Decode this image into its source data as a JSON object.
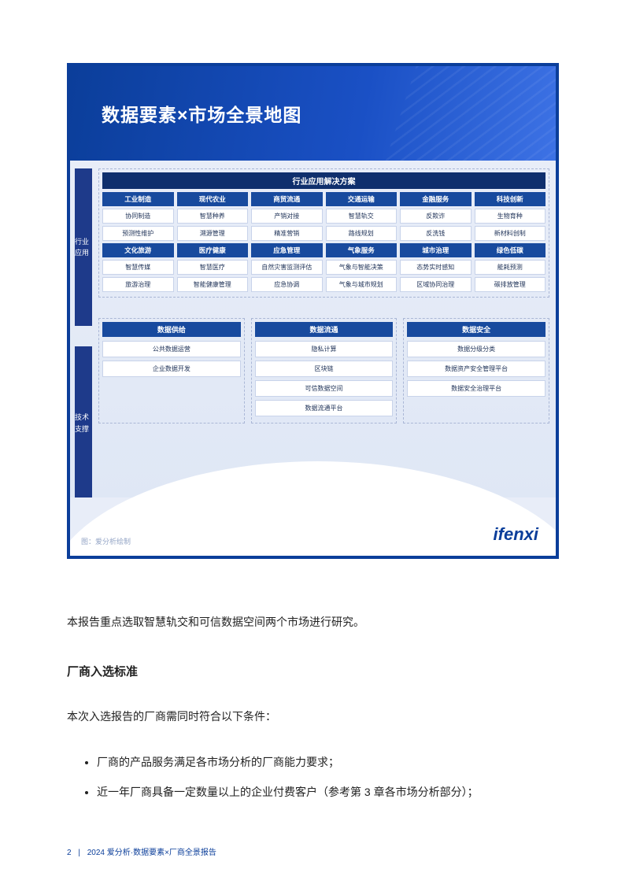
{
  "colors": {
    "frame_border": "#0b3e9a",
    "header_grad_from": "#0b3e9a",
    "header_grad_to": "#3d72e5",
    "panel_dash": "#aab7d6",
    "section_head_bg": "#184a9e",
    "panel_head_bg": "#0f2f6d",
    "cell_bg": "#ffffff",
    "cell_border": "#c8d3ea",
    "body_bg": "#e8edf8",
    "text_dark": "#22355a"
  },
  "diagram": {
    "title": "数据要素×市场全景地图",
    "vertical_tabs": [
      "行业应用",
      "技术支撑"
    ],
    "apps_panel_title": "行业应用解决方案",
    "apps_columns": [
      {
        "head": "工业制造",
        "cells": [
          "协同制造",
          "预测性维护"
        ],
        "head2": "文化旅游",
        "cells2": [
          "智慧传媒",
          "旅游治理"
        ]
      },
      {
        "head": "现代农业",
        "cells": [
          "智慧种养",
          "溯源管理"
        ],
        "head2": "医疗健康",
        "cells2": [
          "智慧医疗",
          "智能健康管理"
        ]
      },
      {
        "head": "商贸流通",
        "cells": [
          "产销对接",
          "精准营销"
        ],
        "head2": "应急管理",
        "cells2": [
          "自然灾害监测评估",
          "应急协调"
        ]
      },
      {
        "head": "交通运输",
        "cells": [
          "智慧轨交",
          "路线规划"
        ],
        "head2": "气象服务",
        "cells2": [
          "气象与智能决策",
          "气象与城市规划"
        ]
      },
      {
        "head": "金融服务",
        "cells": [
          "反欺诈",
          "反洗钱"
        ],
        "head2": "城市治理",
        "cells2": [
          "态势实时感知",
          "区域协同治理"
        ]
      },
      {
        "head": "科技创新",
        "cells": [
          "生物育种",
          "新材料创制"
        ],
        "head2": "绿色低碳",
        "cells2": [
          "能耗预测",
          "碳排放管理"
        ]
      }
    ],
    "tech_panels": [
      {
        "head": "数据供给",
        "cells": [
          "公共数据运营",
          "企业数据开发"
        ]
      },
      {
        "head": "数据流通",
        "cells": [
          "隐私计算",
          "区块链",
          "可信数据空间",
          "数据流通平台"
        ]
      },
      {
        "head": "数据安全",
        "cells": [
          "数据分级分类",
          "数据资产安全管理平台",
          "数据安全治理平台"
        ]
      }
    ],
    "credit": "图：爱分析绘制",
    "brand": "ifenxi"
  },
  "prose": {
    "p1": "本报告重点选取智慧轨交和可信数据空间两个市场进行研究。",
    "h2": "厂商入选标准",
    "p2": "本次入选报告的厂商需同时符合以下条件：",
    "bullets": [
      "厂商的产品服务满足各市场分析的厂商能力要求；",
      "近一年厂商具备一定数量以上的企业付费客户（参考第 3 章各市场分析部分）；"
    ]
  },
  "footer": {
    "page_num": "2",
    "label": "2024 爱分析·数据要素×厂商全景报告"
  }
}
